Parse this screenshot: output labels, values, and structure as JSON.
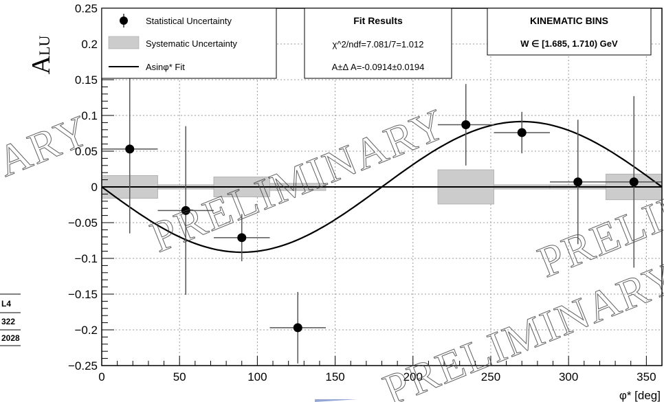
{
  "chart_data": {
    "type": "scatter",
    "xlabel": "φ* [deg]",
    "ylabel": "A",
    "ylabel_sub": "LU",
    "xlim": [
      0,
      360
    ],
    "ylim": [
      -0.25,
      0.25
    ],
    "x_ticks": [
      "0",
      "50",
      "100",
      "150",
      "200",
      "250",
      "300",
      "350"
    ],
    "y_ticks": [
      "0.25",
      "0.2",
      "0.15",
      "0.1",
      "0.05",
      "0",
      "−0.05",
      "−0.1",
      "−0.15",
      "−0.2",
      "−0.25"
    ],
    "grid": true,
    "stat_points": {
      "x": [
        18,
        54,
        90,
        126,
        234,
        270,
        306,
        342
      ],
      "y": [
        0.053,
        -0.033,
        -0.071,
        -0.197,
        0.087,
        0.076,
        0.007,
        0.007
      ],
      "y_err": [
        0.118,
        0.118,
        0.033,
        0.05,
        0.057,
        0.029,
        0.087,
        0.12
      ],
      "x_err": [
        18,
        18,
        18,
        18,
        18,
        18,
        18,
        18
      ]
    },
    "syst_bins": {
      "x_low": [
        0,
        36,
        72,
        108,
        216,
        252,
        288,
        324
      ],
      "x_high": [
        36,
        72,
        108,
        144,
        252,
        288,
        324,
        360
      ],
      "height": [
        0.016,
        0.003,
        0.014,
        0.005,
        0.024,
        0.003,
        0.003,
        0.018
      ]
    },
    "fit": {
      "amplitude": -0.0914
    },
    "legend": {
      "stat": "Statistical Uncertainty",
      "syst": "Systematic Uncertainty",
      "fit": "Asinφ* Fit"
    },
    "fit_box": {
      "title": "Fit Results",
      "chi2": "χ^2/ndf=7.081/7=1.012",
      "amp": "A±Δ A=-0.0914±0.0194"
    },
    "kin_box": {
      "title": "KINEMATIC BINS",
      "range": "W ∈ [1.685, 1.710) GeV"
    },
    "watermarks": [
      "ARY",
      "PRELIMINARY",
      "PRELIMINARY",
      "PRELIMINAR"
    ],
    "side_labels": [
      "L4",
      "322",
      "2028"
    ]
  }
}
